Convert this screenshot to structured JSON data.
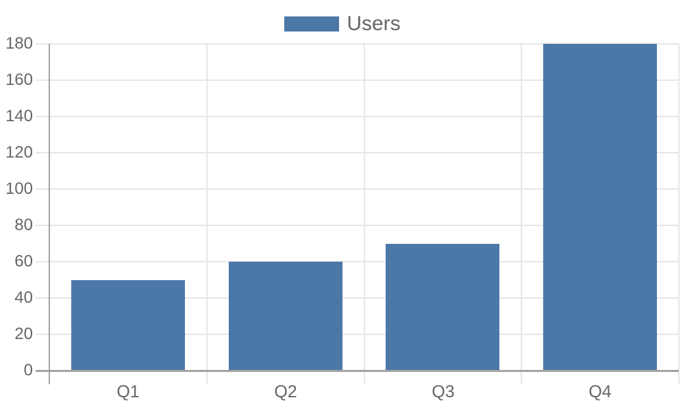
{
  "chart_data": {
    "type": "bar",
    "title": "",
    "xlabel": "",
    "ylabel": "",
    "categories": [
      "Q1",
      "Q2",
      "Q3",
      "Q4"
    ],
    "series": [
      {
        "name": "Users",
        "values": [
          50,
          60,
          70,
          180
        ],
        "color": "#4c78a8"
      }
    ],
    "ylim": [
      0,
      180
    ],
    "ytick_step": 20,
    "yticks": [
      0,
      20,
      40,
      60,
      80,
      100,
      120,
      140,
      160,
      180
    ],
    "grid": true,
    "legend": {
      "position": "top-center",
      "items": [
        {
          "label": "Users",
          "color": "#4c78a8"
        }
      ]
    },
    "colors": {
      "bar": "#4c78a8",
      "grid_light": "#e6e6e6",
      "axis_line": "#a3a3a3",
      "tick_text": "#666666",
      "background": "#ffffff"
    }
  }
}
